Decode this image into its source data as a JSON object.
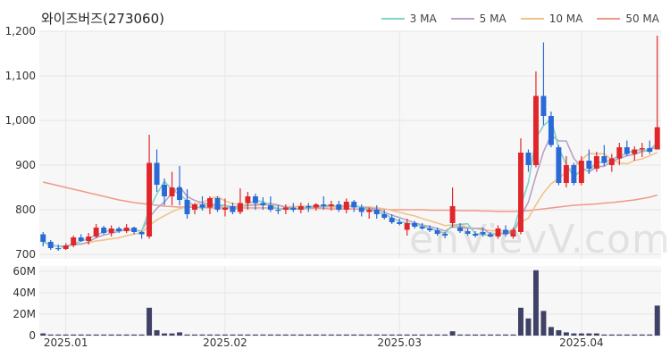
{
  "chart_data": {
    "type": "candlestick",
    "title": "와이즈버즈(273060)",
    "watermark": "enVievV.com",
    "price_axis": {
      "ylim": [
        690,
        1200
      ],
      "ticks": [
        "700",
        "800",
        "900",
        "1,000",
        "1,100",
        "1,200"
      ],
      "tick_values": [
        700,
        800,
        900,
        1000,
        1100,
        1200
      ]
    },
    "volume_axis": {
      "ylim": [
        0,
        65
      ],
      "ticks": [
        "0",
        "20M",
        "40M",
        "60M"
      ],
      "tick_values": [
        0,
        20,
        40,
        60
      ],
      "unit": "M"
    },
    "x_ticks": [
      {
        "label": "2025.01",
        "index": 3
      },
      {
        "label": "2025.02",
        "index": 24
      },
      {
        "label": "2025.03",
        "index": 47
      },
      {
        "label": "2025.04",
        "index": 71
      }
    ],
    "legend": [
      {
        "name": "3 MA",
        "color": "#7fd3c8"
      },
      {
        "name": "5 MA",
        "color": "#b8a2c8"
      },
      {
        "name": "10 MA",
        "color": "#f2c28a"
      },
      {
        "name": "50 MA",
        "color": "#ef9a88"
      }
    ],
    "colors": {
      "up": "#e0262a",
      "down": "#2a69d6",
      "volume": "#3f4166",
      "grid": "#ebebeb"
    },
    "candles": [
      [
        745,
        750,
        718,
        728
      ],
      [
        728,
        732,
        710,
        714
      ],
      [
        714,
        722,
        708,
        712
      ],
      [
        712,
        725,
        710,
        720
      ],
      [
        720,
        742,
        716,
        738
      ],
      [
        738,
        745,
        728,
        730
      ],
      [
        730,
        748,
        722,
        740
      ],
      [
        740,
        768,
        736,
        760
      ],
      [
        760,
        764,
        745,
        748
      ],
      [
        748,
        765,
        740,
        758
      ],
      [
        758,
        762,
        748,
        752
      ],
      [
        752,
        768,
        748,
        760
      ],
      [
        760,
        762,
        745,
        750
      ],
      [
        750,
        752,
        735,
        745
      ],
      [
        740,
        968,
        735,
        905
      ],
      [
        905,
        935,
        840,
        856
      ],
      [
        856,
        870,
        810,
        830
      ],
      [
        830,
        885,
        810,
        850
      ],
      [
        850,
        898,
        810,
        822
      ],
      [
        822,
        846,
        780,
        790
      ],
      [
        800,
        815,
        790,
        812
      ],
      [
        812,
        830,
        798,
        805
      ],
      [
        805,
        830,
        790,
        826
      ],
      [
        826,
        830,
        795,
        800
      ],
      [
        800,
        825,
        785,
        805
      ],
      [
        808,
        816,
        790,
        795
      ],
      [
        795,
        848,
        790,
        815
      ],
      [
        815,
        840,
        800,
        830
      ],
      [
        830,
        836,
        800,
        815
      ],
      [
        815,
        828,
        800,
        810
      ],
      [
        810,
        830,
        795,
        800
      ],
      [
        800,
        810,
        790,
        798
      ],
      [
        800,
        812,
        790,
        805
      ],
      [
        805,
        815,
        795,
        800
      ],
      [
        800,
        816,
        792,
        808
      ],
      [
        808,
        815,
        795,
        805
      ],
      [
        805,
        815,
        798,
        812
      ],
      [
        812,
        830,
        800,
        808
      ],
      [
        808,
        820,
        798,
        812
      ],
      [
        812,
        820,
        795,
        800
      ],
      [
        800,
        825,
        792,
        818
      ],
      [
        818,
        822,
        795,
        805
      ],
      [
        805,
        812,
        785,
        795
      ],
      [
        795,
        805,
        780,
        800
      ],
      [
        800,
        810,
        780,
        790
      ],
      [
        790,
        800,
        778,
        782
      ],
      [
        782,
        790,
        768,
        772
      ],
      [
        772,
        780,
        765,
        768
      ],
      [
        755,
        780,
        742,
        770
      ],
      [
        770,
        775,
        758,
        762
      ],
      [
        762,
        770,
        755,
        758
      ],
      [
        758,
        765,
        750,
        754
      ],
      [
        754,
        760,
        742,
        746
      ],
      [
        746,
        750,
        736,
        742
      ],
      [
        770,
        850,
        760,
        808
      ],
      [
        760,
        770,
        748,
        752
      ],
      [
        752,
        758,
        742,
        746
      ],
      [
        746,
        752,
        738,
        742
      ],
      [
        750,
        760,
        740,
        745
      ],
      [
        745,
        750,
        738,
        740
      ],
      [
        740,
        765,
        735,
        758
      ],
      [
        755,
        765,
        740,
        745
      ],
      [
        740,
        760,
        735,
        755
      ],
      [
        750,
        960,
        745,
        928
      ],
      [
        928,
        935,
        885,
        900
      ],
      [
        900,
        1110,
        895,
        1055
      ],
      [
        1055,
        1175,
        990,
        1010
      ],
      [
        1010,
        1020,
        940,
        945
      ],
      [
        940,
        945,
        855,
        860
      ],
      [
        860,
        920,
        850,
        900
      ],
      [
        900,
        905,
        855,
        860
      ],
      [
        860,
        920,
        855,
        910
      ],
      [
        910,
        935,
        880,
        892
      ],
      [
        892,
        930,
        885,
        920
      ],
      [
        920,
        945,
        898,
        905
      ],
      [
        900,
        925,
        885,
        915
      ],
      [
        915,
        950,
        900,
        940
      ],
      [
        940,
        955,
        920,
        925
      ],
      [
        925,
        942,
        910,
        935
      ],
      [
        935,
        950,
        918,
        938
      ],
      [
        938,
        955,
        925,
        930
      ],
      [
        935,
        1190,
        935,
        985
      ]
    ],
    "volume": [
      2,
      1,
      1,
      1,
      1,
      1,
      1,
      1,
      1,
      1,
      1,
      1,
      1,
      1,
      26,
      5,
      2,
      2,
      3,
      1,
      1,
      1,
      1,
      1,
      1,
      1,
      1,
      1,
      1,
      1,
      1,
      1,
      1,
      1,
      1,
      1,
      1,
      1,
      1,
      1,
      1,
      1,
      1,
      1,
      1,
      1,
      1,
      1,
      1,
      1,
      1,
      1,
      1,
      1,
      4,
      1,
      1,
      1,
      1,
      1,
      1,
      1,
      1,
      26,
      16,
      61,
      23,
      8,
      5,
      3,
      2,
      2,
      2,
      2,
      1,
      1,
      1,
      1,
      1,
      1,
      1,
      28
    ],
    "ma50": [
      862,
      858,
      854,
      850,
      846,
      842,
      838,
      834,
      830,
      826,
      822,
      819,
      816,
      814,
      812,
      810,
      808,
      807,
      806,
      806,
      805,
      805,
      804,
      804,
      804,
      804,
      804,
      804,
      804,
      804,
      804,
      803,
      803,
      803,
      803,
      803,
      803,
      803,
      802,
      802,
      802,
      802,
      801,
      801,
      801,
      801,
      800,
      800,
      800,
      800,
      800,
      799,
      799,
      799,
      799,
      798,
      798,
      798,
      797,
      797,
      796,
      796,
      796,
      797,
      798,
      800,
      802,
      804,
      806,
      808,
      810,
      811,
      812,
      813,
      815,
      816,
      818,
      820,
      822,
      825,
      828,
      833
    ]
  }
}
